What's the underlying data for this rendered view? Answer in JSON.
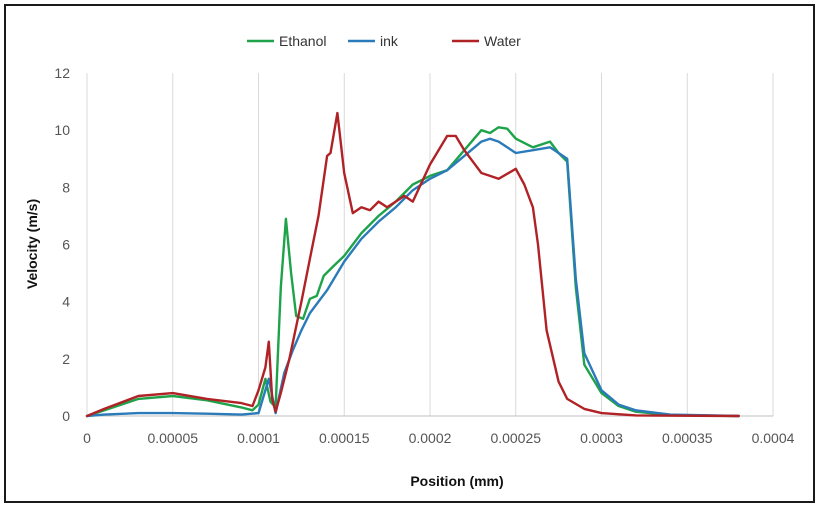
{
  "chart_data": {
    "type": "line",
    "xlabel": "Position (mm)",
    "ylabel": "Velocity (m/s)",
    "xlim": [
      0,
      0.0004
    ],
    "ylim": [
      0,
      12
    ],
    "xticks": [
      "0",
      "0.00005",
      "0.0001",
      "0.00015",
      "0.0002",
      "0.00025",
      "0.0003",
      "0.00035",
      "0.0004"
    ],
    "yticks": [
      "0",
      "2",
      "4",
      "6",
      "8",
      "10",
      "12"
    ],
    "grid": "vertical",
    "legend_position": "top",
    "series": [
      {
        "name": "Ethanol",
        "color": "#1fa34a",
        "points": [
          [
            0,
            0
          ],
          [
            1e-05,
            0.2
          ],
          [
            3e-05,
            0.6
          ],
          [
            5e-05,
            0.7
          ],
          [
            7e-05,
            0.55
          ],
          [
            9e-05,
            0.3
          ],
          [
            9.65e-05,
            0.2
          ],
          [
            0.0001,
            0.4
          ],
          [
            0.000104,
            1.3
          ],
          [
            0.000107,
            0.5
          ],
          [
            0.00011,
            0.3
          ],
          [
            0.000113,
            4.5
          ],
          [
            0.000116,
            6.9
          ],
          [
            0.000119,
            5.0
          ],
          [
            0.000122,
            3.5
          ],
          [
            0.000126,
            3.4
          ],
          [
            0.00013,
            4.1
          ],
          [
            0.000134,
            4.2
          ],
          [
            0.000138,
            4.9
          ],
          [
            0.000143,
            5.2
          ],
          [
            0.00015,
            5.6
          ],
          [
            0.00016,
            6.4
          ],
          [
            0.00017,
            7.0
          ],
          [
            0.00018,
            7.5
          ],
          [
            0.00019,
            8.1
          ],
          [
            0.0002,
            8.4
          ],
          [
            0.00021,
            8.6
          ],
          [
            0.00022,
            9.3
          ],
          [
            0.00023,
            10.0
          ],
          [
            0.000235,
            9.9
          ],
          [
            0.00024,
            10.1
          ],
          [
            0.000245,
            10.05
          ],
          [
            0.00025,
            9.7
          ],
          [
            0.00026,
            9.4
          ],
          [
            0.00027,
            9.6
          ],
          [
            0.000275,
            9.2
          ],
          [
            0.00028,
            8.9
          ],
          [
            0.000285,
            4.5
          ],
          [
            0.00029,
            1.8
          ],
          [
            0.0003,
            0.8
          ],
          [
            0.00031,
            0.35
          ],
          [
            0.00032,
            0.15
          ],
          [
            0.00034,
            0.03
          ],
          [
            0.00038,
            0
          ]
        ]
      },
      {
        "name": "ink",
        "color": "#2b7bba",
        "points": [
          [
            0,
            0
          ],
          [
            1e-05,
            0.05
          ],
          [
            3e-05,
            0.1
          ],
          [
            5e-05,
            0.1
          ],
          [
            7e-05,
            0.08
          ],
          [
            9e-05,
            0.05
          ],
          [
            0.0001,
            0.1
          ],
          [
            0.000106,
            1.3
          ],
          [
            0.00011,
            0.1
          ],
          [
            0.000115,
            1.5
          ],
          [
            0.00012,
            2.3
          ],
          [
            0.000125,
            3.0
          ],
          [
            0.00013,
            3.6
          ],
          [
            0.00014,
            4.4
          ],
          [
            0.00015,
            5.4
          ],
          [
            0.00016,
            6.2
          ],
          [
            0.00017,
            6.8
          ],
          [
            0.00018,
            7.3
          ],
          [
            0.00019,
            7.9
          ],
          [
            0.0002,
            8.3
          ],
          [
            0.00021,
            8.6
          ],
          [
            0.00022,
            9.1
          ],
          [
            0.00023,
            9.6
          ],
          [
            0.000235,
            9.7
          ],
          [
            0.00024,
            9.6
          ],
          [
            0.00025,
            9.2
          ],
          [
            0.00026,
            9.3
          ],
          [
            0.00027,
            9.4
          ],
          [
            0.000275,
            9.2
          ],
          [
            0.00028,
            9.0
          ],
          [
            0.000285,
            4.8
          ],
          [
            0.00029,
            2.2
          ],
          [
            0.0003,
            0.9
          ],
          [
            0.00031,
            0.4
          ],
          [
            0.00032,
            0.2
          ],
          [
            0.00034,
            0.05
          ],
          [
            0.00038,
            0
          ]
        ]
      },
      {
        "name": "Water",
        "color": "#b02226",
        "points": [
          [
            0,
            0
          ],
          [
            1e-05,
            0.25
          ],
          [
            3e-05,
            0.7
          ],
          [
            5e-05,
            0.8
          ],
          [
            7e-05,
            0.6
          ],
          [
            9e-05,
            0.45
          ],
          [
            9.65e-05,
            0.35
          ],
          [
            0.0001,
            0.9
          ],
          [
            0.000104,
            1.7
          ],
          [
            0.000106,
            2.6
          ],
          [
            0.000108,
            0.6
          ],
          [
            0.00011,
            0.15
          ],
          [
            0.000113,
            0.8
          ],
          [
            0.000118,
            2.0
          ],
          [
            0.000125,
            4.0
          ],
          [
            0.00013,
            5.5
          ],
          [
            0.000135,
            7.0
          ],
          [
            0.00014,
            9.1
          ],
          [
            0.000142,
            9.2
          ],
          [
            0.000146,
            10.6
          ],
          [
            0.00015,
            8.5
          ],
          [
            0.000155,
            7.1
          ],
          [
            0.00016,
            7.3
          ],
          [
            0.000165,
            7.2
          ],
          [
            0.00017,
            7.5
          ],
          [
            0.000175,
            7.3
          ],
          [
            0.00018,
            7.5
          ],
          [
            0.000185,
            7.7
          ],
          [
            0.00019,
            7.5
          ],
          [
            0.0002,
            8.8
          ],
          [
            0.00021,
            9.8
          ],
          [
            0.000215,
            9.8
          ],
          [
            0.00022,
            9.3
          ],
          [
            0.00023,
            8.5
          ],
          [
            0.00024,
            8.3
          ],
          [
            0.00025,
            8.65
          ],
          [
            0.000255,
            8.1
          ],
          [
            0.00026,
            7.3
          ],
          [
            0.000263,
            6.0
          ],
          [
            0.000268,
            3.0
          ],
          [
            0.000275,
            1.2
          ],
          [
            0.00028,
            0.6
          ],
          [
            0.00029,
            0.25
          ],
          [
            0.0003,
            0.1
          ],
          [
            0.00032,
            0.02
          ],
          [
            0.00038,
            0
          ]
        ]
      }
    ]
  }
}
